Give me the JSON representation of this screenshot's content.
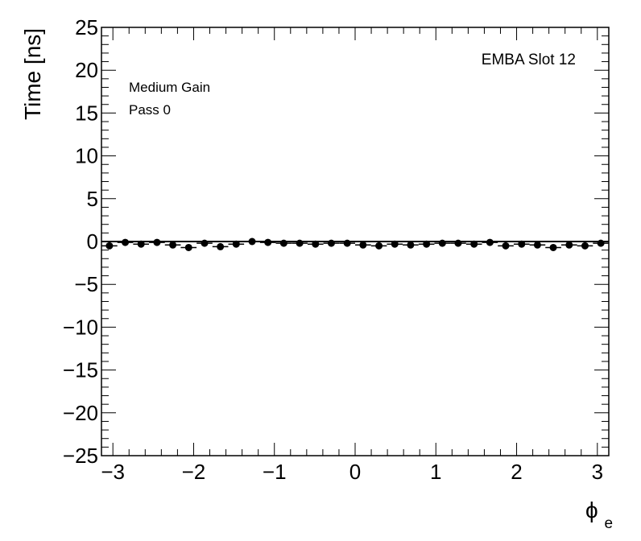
{
  "chart_data": {
    "type": "scatter",
    "xlabel_main": "ϕ",
    "xlabel_sub": "e",
    "ylabel": "Time [ns]",
    "xlim": [
      -3.1416,
      3.1416
    ],
    "ylim": [
      -25,
      25
    ],
    "grid": false,
    "x_ticks": [
      -3,
      -2,
      -1,
      0,
      1,
      2,
      3
    ],
    "x_tick_labels": [
      "−3",
      "−2",
      "−1",
      "0",
      "1",
      "2",
      "3"
    ],
    "y_ticks": [
      25,
      20,
      15,
      10,
      5,
      0,
      -5,
      -10,
      -15,
      -20,
      -25
    ],
    "y_tick_labels": [
      "25",
      "20",
      "15",
      "10",
      "5",
      "0",
      "−5",
      "−10",
      "−15",
      "−20",
      "−25"
    ],
    "reference_line_y": 0,
    "annotations": {
      "top_right": "EMBA Slot 12",
      "left_line1": "Medium Gain",
      "left_line2": "Pass 0"
    },
    "x": [
      -3.043,
      -2.847,
      -2.651,
      -2.454,
      -2.258,
      -2.062,
      -1.865,
      -1.669,
      -1.473,
      -1.276,
      -1.08,
      -0.884,
      -0.687,
      -0.491,
      -0.295,
      -0.098,
      0.098,
      0.295,
      0.491,
      0.687,
      0.884,
      1.08,
      1.276,
      1.473,
      1.669,
      1.865,
      2.062,
      2.258,
      2.454,
      2.651,
      2.847,
      3.043
    ],
    "y": [
      -0.5,
      -0.1,
      -0.3,
      -0.1,
      -0.4,
      -0.7,
      -0.2,
      -0.6,
      -0.3,
      0.0,
      -0.1,
      -0.2,
      -0.2,
      -0.3,
      -0.2,
      -0.2,
      -0.4,
      -0.5,
      -0.3,
      -0.4,
      -0.3,
      -0.2,
      -0.2,
      -0.3,
      -0.1,
      -0.5,
      -0.3,
      -0.4,
      -0.7,
      -0.4,
      -0.5,
      -0.2
    ],
    "y_err": [
      0.15,
      0.15,
      0.15,
      0.15,
      0.15,
      0.15,
      0.15,
      0.15,
      0.15,
      0.15,
      0.15,
      0.15,
      0.15,
      0.15,
      0.15,
      0.15,
      0.15,
      0.15,
      0.15,
      0.15,
      0.15,
      0.15,
      0.15,
      0.15,
      0.15,
      0.15,
      0.15,
      0.15,
      0.15,
      0.15,
      0.15,
      0.15
    ]
  }
}
